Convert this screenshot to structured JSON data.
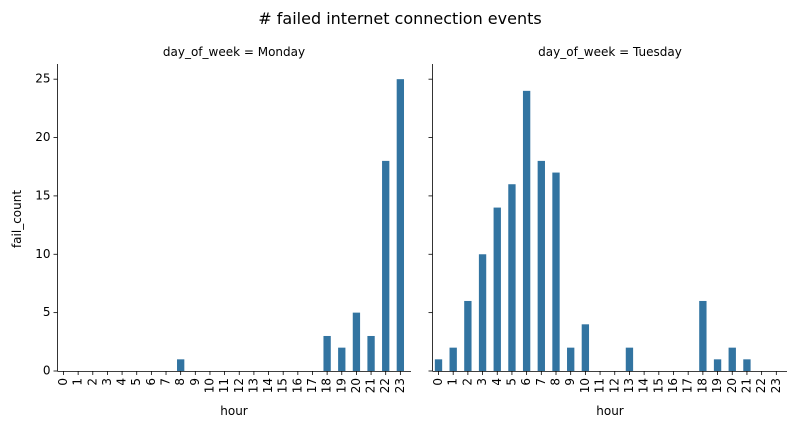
{
  "chart_data": {
    "type": "bar",
    "suptitle": "# failed internet connection events",
    "xlabel": "hour",
    "ylabel": "fail_count",
    "ylim": [
      0,
      26.3
    ],
    "yticks": [
      0,
      5,
      10,
      15,
      20,
      25
    ],
    "categories": [
      "0",
      "1",
      "2",
      "3",
      "4",
      "5",
      "6",
      "7",
      "8",
      "9",
      "10",
      "11",
      "12",
      "13",
      "14",
      "15",
      "16",
      "17",
      "18",
      "19",
      "20",
      "21",
      "22",
      "23"
    ],
    "bar_color": "#3274a1",
    "grid": false,
    "panels": [
      {
        "title": "day_of_week = Monday",
        "values": [
          0,
          0,
          0,
          0,
          0,
          0,
          0,
          0,
          1,
          0,
          0,
          0,
          0,
          0,
          0,
          0,
          0,
          0,
          3,
          2,
          5,
          3,
          18,
          25
        ]
      },
      {
        "title": "day_of_week = Tuesday",
        "values": [
          1,
          2,
          6,
          10,
          14,
          16,
          24,
          18,
          17,
          2,
          4,
          0,
          0,
          2,
          0,
          0,
          0,
          0,
          6,
          1,
          2,
          1,
          0,
          0
        ]
      }
    ]
  }
}
